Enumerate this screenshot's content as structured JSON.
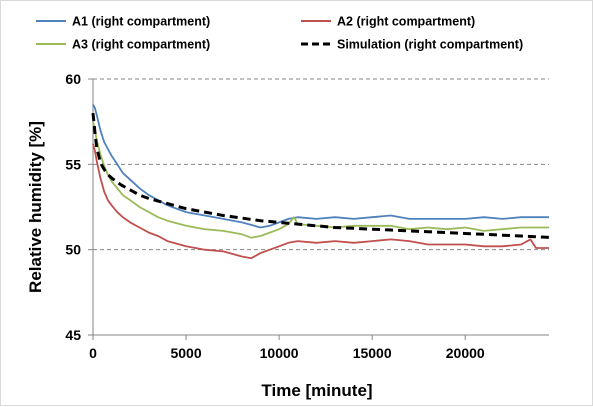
{
  "chart_data": {
    "type": "line",
    "title": "",
    "xlabel": "Time [minute]",
    "ylabel": "Relative humidity [%]",
    "xlim": [
      0,
      24500
    ],
    "ylim": [
      45,
      60
    ],
    "xticks": [
      0,
      5000,
      10000,
      15000,
      20000
    ],
    "yticks": [
      45,
      50,
      55,
      60
    ],
    "grid": "horizontal dashed",
    "legend_position": "top",
    "series": [
      {
        "name": "A1 (right compartment)",
        "color": "#4f81bd",
        "style": "solid",
        "x": [
          0,
          100,
          200,
          400,
          600,
          800,
          1000,
          1300,
          1600,
          2000,
          2500,
          3000,
          3500,
          4000,
          5000,
          6000,
          7000,
          8000,
          9000,
          9500,
          10000,
          10500,
          11000,
          12000,
          13000,
          14000,
          15000,
          16000,
          17000,
          18000,
          19000,
          20000,
          21000,
          22000,
          23000,
          24000,
          24500
        ],
        "y": [
          58.5,
          58.3,
          57.9,
          57.0,
          56.3,
          55.9,
          55.5,
          55.0,
          54.5,
          54.1,
          53.6,
          53.2,
          52.9,
          52.6,
          52.2,
          52.0,
          51.8,
          51.6,
          51.3,
          51.4,
          51.6,
          51.8,
          51.9,
          51.8,
          51.9,
          51.8,
          51.9,
          52.0,
          51.8,
          51.8,
          51.8,
          51.8,
          51.9,
          51.8,
          51.9,
          51.9,
          51.9
        ]
      },
      {
        "name": "A2 (right compartment)",
        "color": "#c0504d",
        "style": "solid",
        "x": [
          0,
          100,
          200,
          400,
          600,
          800,
          1000,
          1300,
          1600,
          2000,
          2500,
          3000,
          3500,
          4000,
          5000,
          6000,
          7000,
          8000,
          8500,
          9000,
          9500,
          10000,
          10500,
          11000,
          12000,
          13000,
          14000,
          15000,
          16000,
          17000,
          18000,
          19000,
          20000,
          21000,
          22000,
          23000,
          23500,
          23800,
          24000,
          24500
        ],
        "y": [
          56.2,
          55.8,
          55.2,
          54.2,
          53.4,
          52.9,
          52.6,
          52.2,
          51.9,
          51.6,
          51.3,
          51.0,
          50.8,
          50.5,
          50.2,
          50.0,
          49.9,
          49.6,
          49.5,
          49.8,
          50.0,
          50.2,
          50.4,
          50.5,
          50.4,
          50.5,
          50.4,
          50.5,
          50.6,
          50.5,
          50.3,
          50.3,
          50.3,
          50.2,
          50.2,
          50.3,
          50.6,
          50.1,
          50.1,
          50.1
        ]
      },
      {
        "name": "A3 (right compartment)",
        "color": "#9bbb59",
        "style": "solid",
        "x": [
          0,
          100,
          200,
          400,
          600,
          800,
          1000,
          1300,
          1600,
          2000,
          2500,
          3000,
          3500,
          4000,
          5000,
          6000,
          7000,
          8000,
          8500,
          9000,
          9500,
          10000,
          10500,
          10800,
          11000,
          12000,
          13000,
          14000,
          15000,
          16000,
          17000,
          18000,
          19000,
          20000,
          21000,
          22000,
          23000,
          24000,
          24500
        ],
        "y": [
          57.5,
          57.0,
          56.4,
          55.6,
          54.9,
          54.4,
          54.0,
          53.6,
          53.2,
          52.9,
          52.5,
          52.2,
          51.9,
          51.7,
          51.4,
          51.2,
          51.1,
          50.9,
          50.7,
          50.8,
          51.0,
          51.2,
          51.5,
          51.9,
          51.5,
          51.4,
          51.3,
          51.4,
          51.4,
          51.4,
          51.2,
          51.3,
          51.2,
          51.3,
          51.1,
          51.2,
          51.3,
          51.3,
          51.3
        ]
      },
      {
        "name": "Simulation (right compartment)",
        "color": "#000000",
        "style": "dashed",
        "x": [
          0,
          100,
          200,
          400,
          600,
          800,
          1000,
          1500,
          2000,
          2500,
          3000,
          4000,
          5000,
          6000,
          7000,
          8000,
          9000,
          10000,
          11000,
          12000,
          13000,
          14000,
          15000,
          16000,
          17000,
          18000,
          19000,
          20000,
          21000,
          22000,
          23000,
          24000,
          24500
        ],
        "y": [
          58.0,
          56.9,
          56.0,
          55.1,
          54.7,
          54.4,
          54.2,
          53.8,
          53.5,
          53.2,
          53.0,
          52.7,
          52.4,
          52.2,
          52.0,
          51.85,
          51.7,
          51.6,
          51.5,
          51.4,
          51.3,
          51.25,
          51.2,
          51.15,
          51.1,
          51.05,
          51.0,
          50.95,
          50.9,
          50.85,
          50.8,
          50.75,
          50.72
        ]
      }
    ]
  }
}
